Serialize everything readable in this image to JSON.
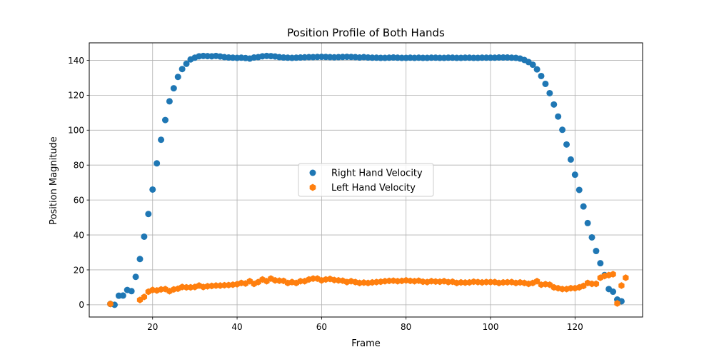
{
  "chart_data": {
    "type": "scatter",
    "title": "Position Profile of Both Hands",
    "xlabel": "Frame",
    "ylabel": "Position Magnitude",
    "xlim": [
      5,
      136
    ],
    "ylim": [
      -7,
      150
    ],
    "xticks": [
      20,
      40,
      60,
      80,
      100,
      120
    ],
    "yticks": [
      0,
      20,
      40,
      60,
      80,
      100,
      120,
      140
    ],
    "grid": true,
    "legend_position": "center",
    "series": [
      {
        "name": "Right Hand Velocity",
        "color": "#1f77b4",
        "marker": "circle",
        "x": [
          10,
          11,
          12,
          13,
          14,
          15,
          16,
          17,
          18,
          19,
          20,
          21,
          22,
          23,
          24,
          25,
          26,
          27,
          28,
          29,
          30,
          31,
          32,
          33,
          34,
          35,
          36,
          37,
          38,
          39,
          40,
          41,
          42,
          43,
          44,
          45,
          46,
          47,
          48,
          49,
          50,
          51,
          52,
          53,
          54,
          55,
          56,
          57,
          58,
          59,
          60,
          61,
          62,
          63,
          64,
          65,
          66,
          67,
          68,
          69,
          70,
          71,
          72,
          73,
          74,
          75,
          76,
          77,
          78,
          79,
          80,
          81,
          82,
          83,
          84,
          85,
          86,
          87,
          88,
          89,
          90,
          91,
          92,
          93,
          94,
          95,
          96,
          97,
          98,
          99,
          100,
          101,
          102,
          103,
          104,
          105,
          106,
          107,
          108,
          109,
          110,
          111,
          112,
          113,
          114,
          115,
          116,
          117,
          118,
          119,
          120,
          121,
          122,
          123,
          124,
          125,
          126,
          127,
          128,
          129,
          130,
          131
        ],
        "y": [
          0.5,
          0,
          5.2,
          5.3,
          8.5,
          7.8,
          16,
          26.2,
          39,
          52,
          66,
          81,
          94.5,
          105.8,
          116.5,
          124,
          130.5,
          135,
          138,
          140.5,
          141.5,
          142.3,
          142.5,
          142.4,
          142.3,
          142.5,
          142.2,
          141.8,
          141.6,
          141.5,
          141.4,
          141.5,
          141.3,
          141,
          141.6,
          141.8,
          142.3,
          142.5,
          142.4,
          142.2,
          141.8,
          141.6,
          141.5,
          141.4,
          141.5,
          141.6,
          141.7,
          141.8,
          141.8,
          141.9,
          142,
          141.9,
          141.8,
          141.7,
          141.8,
          141.9,
          142,
          141.9,
          141.8,
          141.6,
          141.8,
          141.6,
          141.5,
          141.5,
          141.4,
          141.4,
          141.5,
          141.6,
          141.5,
          141.4,
          141.4,
          141.5,
          141.4,
          141.5,
          141.4,
          141.4,
          141.5,
          141.5,
          141.4,
          141.4,
          141.5,
          141.5,
          141.4,
          141.4,
          141.5,
          141.5,
          141.4,
          141.4,
          141.5,
          141.5,
          141.5,
          141.5,
          141.6,
          141.6,
          141.6,
          141.5,
          141.4,
          141,
          140.2,
          139,
          137.5,
          134.8,
          131,
          126.5,
          121.2,
          114.7,
          107.8,
          100.2,
          91.8,
          83.2,
          74.5,
          65.8,
          56.3,
          46.8,
          38.6,
          30.8,
          23.8,
          17,
          9,
          7.5,
          3,
          2
        ]
      },
      {
        "name": "Left Hand Velocity",
        "color": "#ff7f0e",
        "marker": "hexagon",
        "x": [
          10,
          17,
          18,
          19,
          20,
          21,
          22,
          23,
          24,
          25,
          26,
          27,
          28,
          29,
          30,
          31,
          32,
          33,
          34,
          35,
          36,
          37,
          38,
          39,
          40,
          41,
          42,
          43,
          44,
          45,
          46,
          47,
          48,
          49,
          50,
          51,
          52,
          53,
          54,
          55,
          56,
          57,
          58,
          59,
          60,
          61,
          62,
          63,
          64,
          65,
          66,
          67,
          68,
          69,
          70,
          71,
          72,
          73,
          74,
          75,
          76,
          77,
          78,
          79,
          80,
          81,
          82,
          83,
          84,
          85,
          86,
          87,
          88,
          89,
          90,
          91,
          92,
          93,
          94,
          95,
          96,
          97,
          98,
          99,
          100,
          101,
          102,
          103,
          104,
          105,
          106,
          107,
          108,
          109,
          110,
          111,
          112,
          113,
          114,
          115,
          116,
          117,
          118,
          119,
          120,
          121,
          122,
          123,
          124,
          125,
          126,
          127,
          128,
          129,
          130,
          131,
          132
        ],
        "y": [
          0.5,
          2.8,
          4.5,
          7.5,
          8.5,
          8.2,
          8.8,
          9,
          7.8,
          8.8,
          9.2,
          10.2,
          10,
          10,
          10.2,
          11,
          10.2,
          10.6,
          10.8,
          11,
          11,
          11.2,
          11.3,
          11.5,
          11.8,
          12.5,
          12.2,
          13.5,
          12,
          13,
          14.5,
          13.5,
          15,
          14,
          13.8,
          13.7,
          12.5,
          13,
          12.5,
          13.5,
          13.5,
          14.5,
          15,
          15,
          14,
          14.5,
          14.8,
          14.2,
          14,
          13.8,
          13,
          13.5,
          13,
          12.5,
          12.7,
          12.5,
          12.8,
          13,
          13.2,
          13.5,
          13.7,
          13.8,
          13.5,
          13.7,
          14,
          13.7,
          13.5,
          13.8,
          13.2,
          13,
          13.5,
          13.3,
          13.2,
          13.5,
          13,
          13.2,
          12.5,
          12.8,
          12.7,
          12.8,
          13.2,
          13,
          12.8,
          13,
          13,
          13,
          12.5,
          12.8,
          12.9,
          13,
          12.5,
          12.8,
          12.5,
          12,
          12.5,
          13.5,
          11.5,
          11.8,
          11.5,
          10,
          9.5,
          9,
          9,
          9.5,
          9.5,
          10,
          10.8,
          12.5,
          12,
          12,
          15.5,
          16.5,
          17,
          17.5,
          0.8,
          11,
          15.5
        ]
      }
    ]
  }
}
